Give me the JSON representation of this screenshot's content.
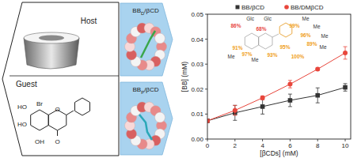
{
  "chart_data": {
    "type": "scatter",
    "x_label": "[βCDs] (mM)",
    "y_label": "[BB] (mM)",
    "x": [
      0,
      2,
      4,
      6,
      8,
      10
    ],
    "series": [
      {
        "name": "BB/βCD",
        "color": "#333333",
        "marker": "square",
        "line_style": "solid",
        "values": [
          0.0073,
          0.0105,
          0.013,
          0.0155,
          0.0175,
          0.0207
        ],
        "errors": [
          0.0005,
          0.003,
          0.003,
          0.0025,
          0.003,
          0.0015
        ]
      },
      {
        "name": "BB/DMβCD",
        "color": "#e8463c",
        "marker": "circle",
        "line_style": "solid",
        "values": [
          0.0073,
          0.0115,
          0.0165,
          0.022,
          0.028,
          0.0345
        ],
        "errors": [
          0.0003,
          0.002,
          0.0008,
          0.0015,
          0.0005,
          0.0025
        ]
      }
    ],
    "xlim": [
      0,
      10.4
    ],
    "xticks": [
      0,
      2,
      4,
      6,
      8,
      10
    ],
    "ylim": [
      0,
      0.05
    ],
    "yticks": [
      {
        "value": 0,
        "label": "0.00"
      },
      {
        "value": 0.01,
        "label": "0.01"
      },
      {
        "value": 0.02,
        "label": "0.02"
      },
      {
        "value": 0.03,
        "label": "0.03"
      },
      {
        "value": 0.04,
        "label": "0.04"
      },
      {
        "value": 0.05,
        "label": "0.05"
      }
    ],
    "legend": "top",
    "annotations": [
      {
        "text": "Glc",
        "color": "#333333"
      },
      {
        "text": "Glc",
        "color": "#333333"
      },
      {
        "text": "86%",
        "color": "#e8463c"
      },
      {
        "text": "68%",
        "color": "#e8463c"
      },
      {
        "text": "Me",
        "color": "#333333"
      },
      {
        "text": "Me",
        "color": "#333333"
      },
      {
        "text": "Me",
        "color": "#333333"
      },
      {
        "text": "Me",
        "color": "#333333"
      },
      {
        "text": "Me",
        "color": "#333333"
      },
      {
        "text": "Me",
        "color": "#333333"
      },
      {
        "text": "99%",
        "color": "#f0a020"
      },
      {
        "text": "96%",
        "color": "#f0a020"
      },
      {
        "text": "89%",
        "color": "#f0a020"
      },
      {
        "text": "91%",
        "color": "#f0a020"
      },
      {
        "text": "97%",
        "color": "#f0a020"
      },
      {
        "text": "93%",
        "color": "#f0a020"
      },
      {
        "text": "95%",
        "color": "#f0a020"
      },
      {
        "text": "100%",
        "color": "#f0a020"
      }
    ]
  },
  "diagram": {
    "host": "Host",
    "guest": "Guest",
    "guest_atoms": [
      "Br",
      "HO",
      "HO",
      "OH",
      "O",
      "O"
    ],
    "complexes": [
      {
        "main": "BB",
        "sub": "D",
        "tail": "/βCD"
      },
      {
        "main": "BB",
        "sub": "P",
        "tail": "/βCD"
      }
    ]
  }
}
